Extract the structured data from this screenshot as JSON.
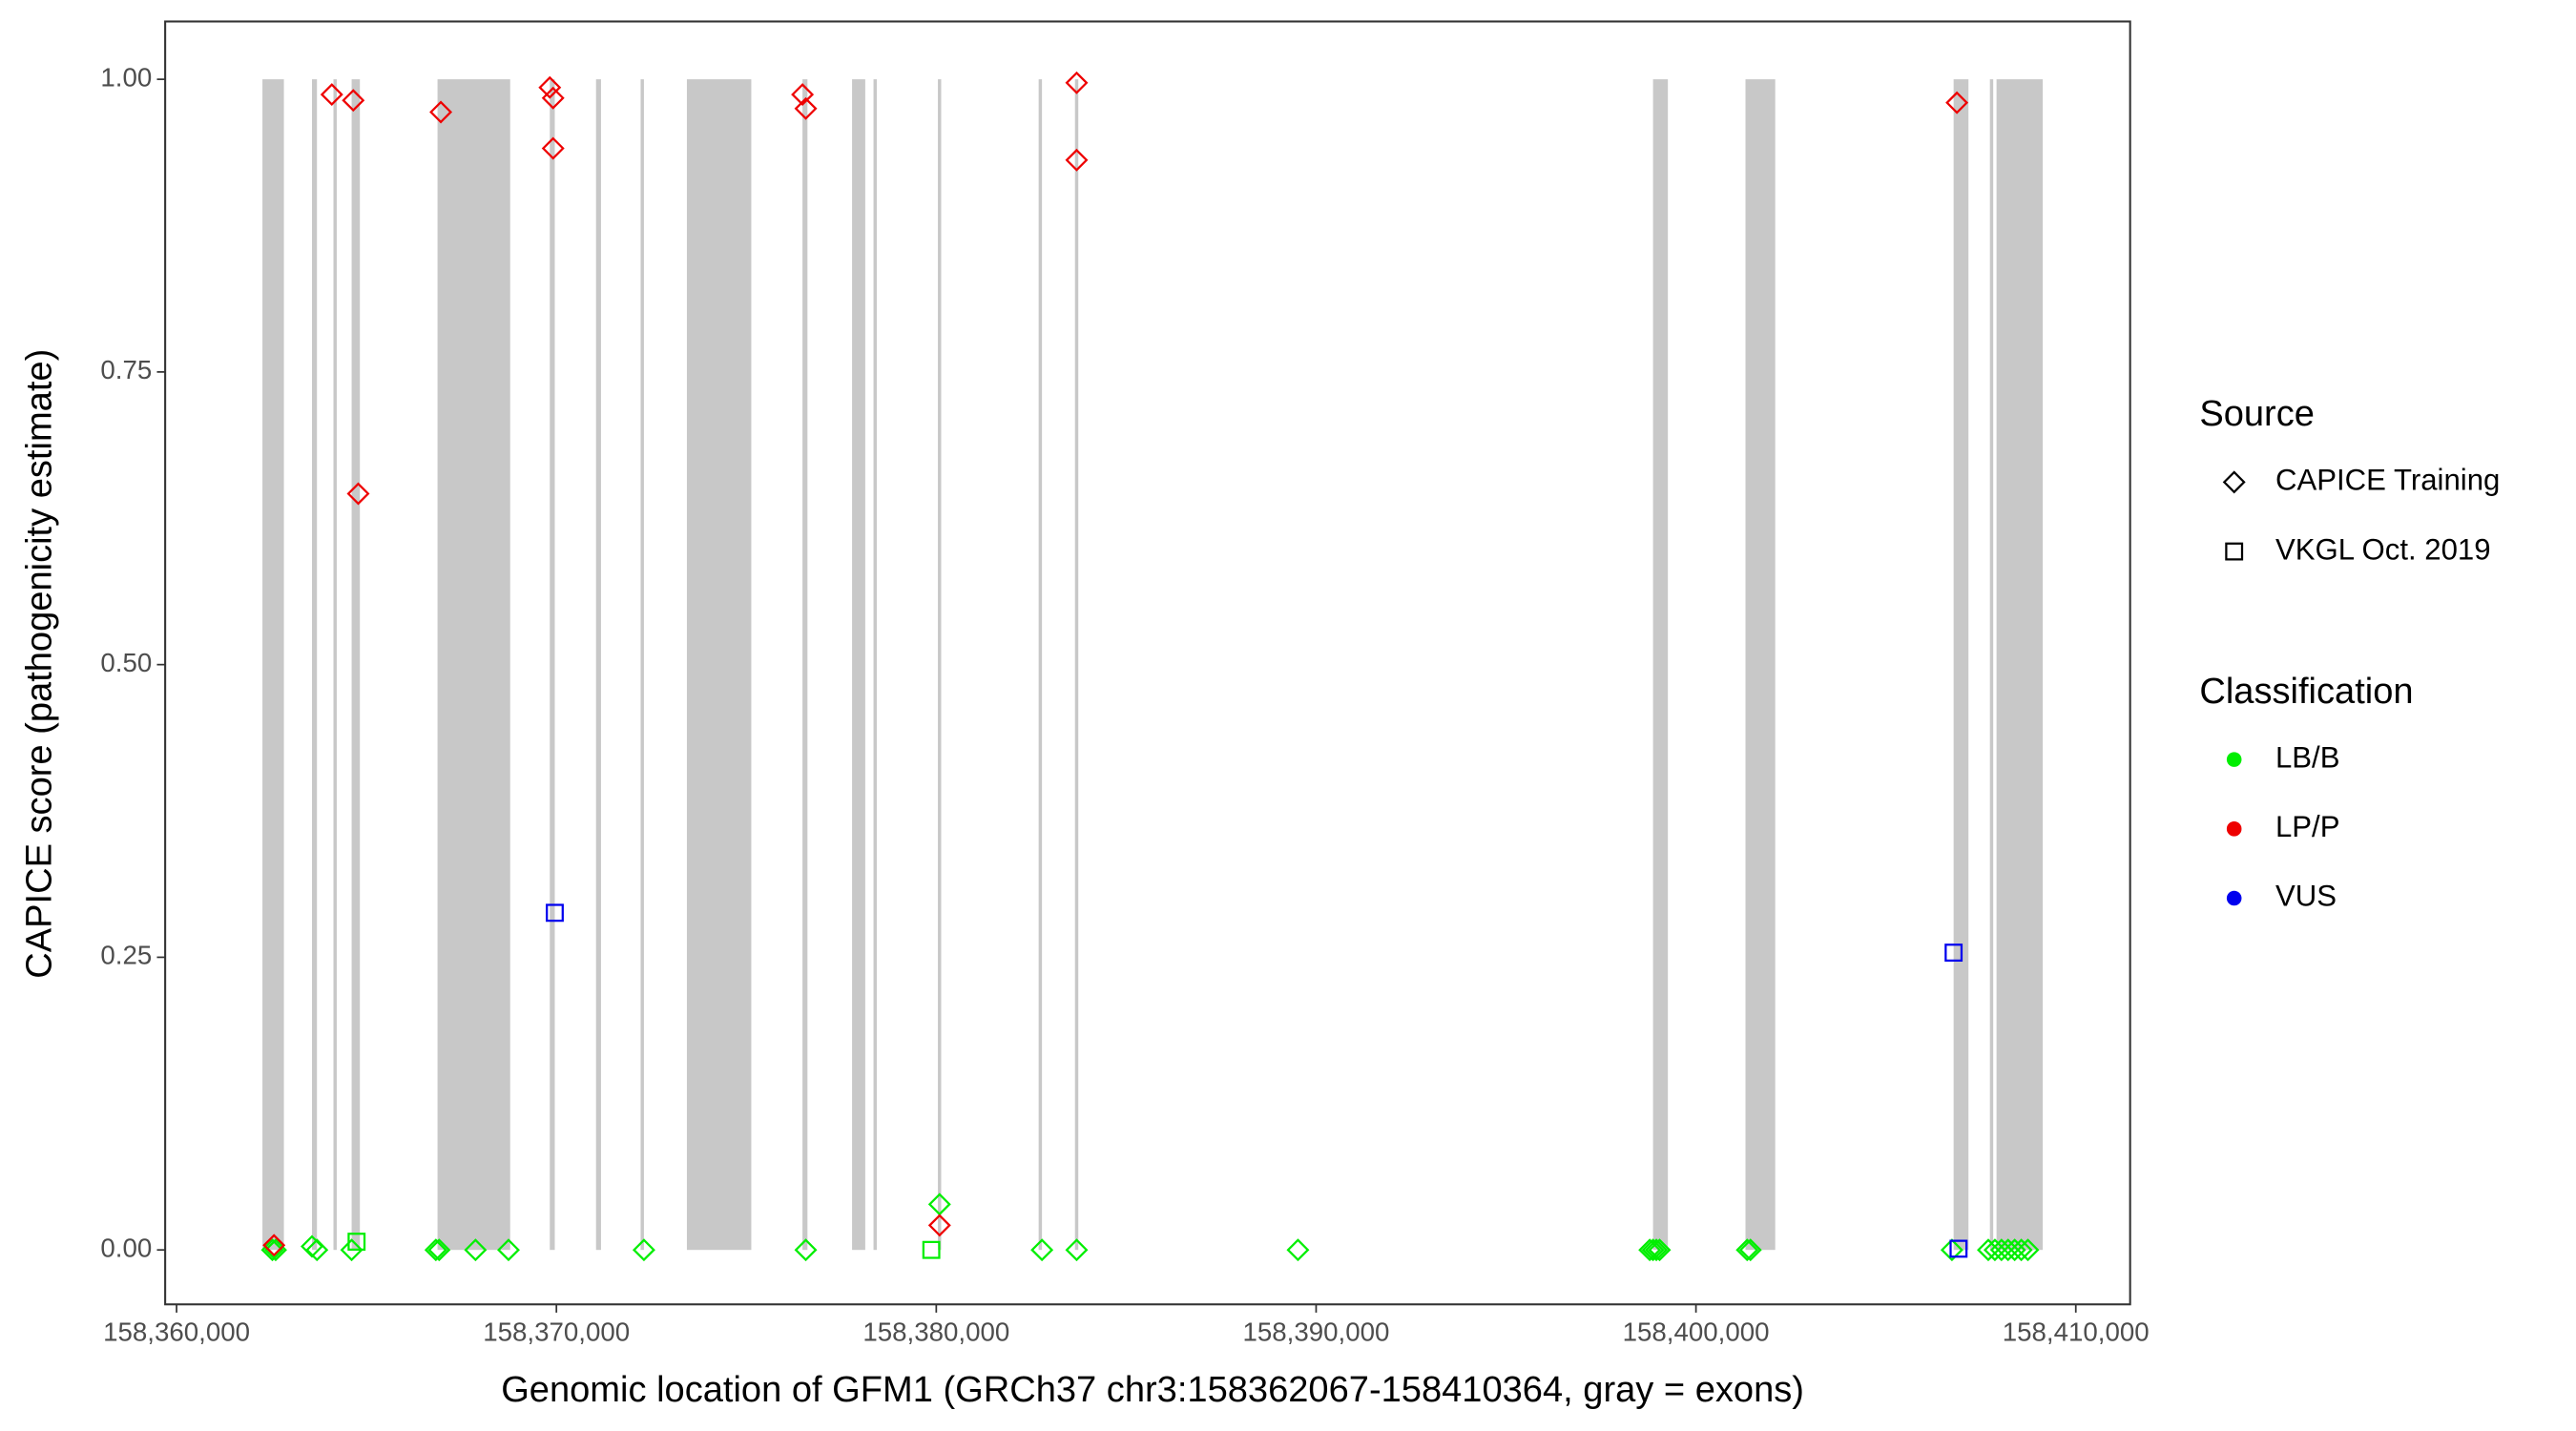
{
  "chart_data": {
    "type": "scatter",
    "x_label": "Genomic location of GFM1 (GRCh37 chr3:158362067-158410364, gray = exons)",
    "y_label": "CAPICE score (pathogenicity estimate)",
    "xlim": [
      158359700,
      158411430
    ],
    "ylim": [
      -0.0465,
      1.0494
    ],
    "xticks": [
      {
        "value": 158360000,
        "label": "158,360,000"
      },
      {
        "value": 158370000,
        "label": "158,370,000"
      },
      {
        "value": 158380000,
        "label": "158,380,000"
      },
      {
        "value": 158390000,
        "label": "158,390,000"
      },
      {
        "value": 158400000,
        "label": "158,400,000"
      },
      {
        "value": 158410000,
        "label": "158,410,000"
      }
    ],
    "yticks": [
      {
        "value": 0,
        "label": "0.00"
      },
      {
        "value": 0.25,
        "label": "0.25"
      },
      {
        "value": 0.5,
        "label": "0.50"
      },
      {
        "value": 0.75,
        "label": "0.75"
      },
      {
        "value": 1,
        "label": "1.00"
      }
    ],
    "grid": false,
    "exon_color": "#c8c8c8",
    "exon_span": [
      0,
      1
    ],
    "exons": [
      [
        158362261,
        158362826
      ],
      [
        158363565,
        158363696
      ],
      [
        158364130,
        158364217
      ],
      [
        158364609,
        158364826
      ],
      [
        158366870,
        158368783
      ],
      [
        158369826,
        158369957
      ],
      [
        158371043,
        158371174
      ],
      [
        158372217,
        158372304
      ],
      [
        158373435,
        158375130
      ],
      [
        158376478,
        158376609
      ],
      [
        158377783,
        158378130
      ],
      [
        158378348,
        158378435
      ],
      [
        158380043,
        158380130
      ],
      [
        158382696,
        158382783
      ],
      [
        158383652,
        158383739
      ],
      [
        158398870,
        158399261
      ],
      [
        158401304,
        158402087
      ],
      [
        158406783,
        158407174
      ],
      [
        158407739,
        158407826
      ],
      [
        158407913,
        158409130
      ]
    ],
    "series": [
      {
        "shape": "diamond",
        "color": "#00ee00",
        "x": [
          158362522,
          158362609,
          158363565,
          158363696,
          158364609,
          158366826,
          158366913,
          158367870,
          158368739,
          158372304,
          158376565,
          158380087,
          158382783,
          158383696,
          158389522,
          158398783,
          158398870,
          158398957,
          158399043,
          158401348,
          158401435,
          158406739,
          158407696,
          158407870,
          158408043,
          158408217,
          158408391,
          158408565,
          158408739
        ],
        "y": [
          0,
          0,
          0.003,
          0,
          0,
          0,
          0,
          0,
          0,
          0,
          0,
          0.039,
          0,
          0,
          0,
          0,
          0,
          0,
          0,
          0,
          0,
          0,
          0,
          0,
          0,
          0,
          0,
          0,
          0
        ]
      },
      {
        "shape": "diamond",
        "color": "#ee0000",
        "x": [
          158362565,
          158364087,
          158364652,
          158364783,
          158366957,
          158369826,
          158369913,
          158369913,
          158376478,
          158376565,
          158380087,
          158383696,
          158383696,
          158406870
        ],
        "y": [
          0.004,
          0.987,
          0.982,
          0.646,
          0.972,
          0.993,
          0.984,
          0.941,
          0.987,
          0.975,
          0.021,
          0.997,
          0.931,
          0.98
        ]
      },
      {
        "shape": "square",
        "color": "#00ee00",
        "x": [
          158364739,
          158379870
        ],
        "y": [
          0.007,
          0
        ]
      },
      {
        "shape": "square",
        "color": "#0000ee",
        "x": [
          158369957,
          158406783,
          158406913
        ],
        "y": [
          0.288,
          0.254,
          0.001
        ]
      }
    ],
    "legend": [
      {
        "title": "Source",
        "entries": [
          {
            "label": "CAPICE Training",
            "shape": "diamond"
          },
          {
            "label": "VKGL Oct. 2019",
            "shape": "square"
          }
        ]
      },
      {
        "title": "Classification",
        "entries": [
          {
            "label": "LB/B",
            "color": "#00ee00"
          },
          {
            "label": "LP/P",
            "color": "#ee0000"
          },
          {
            "label": "VUS",
            "color": "#0000ee"
          }
        ]
      }
    ]
  }
}
